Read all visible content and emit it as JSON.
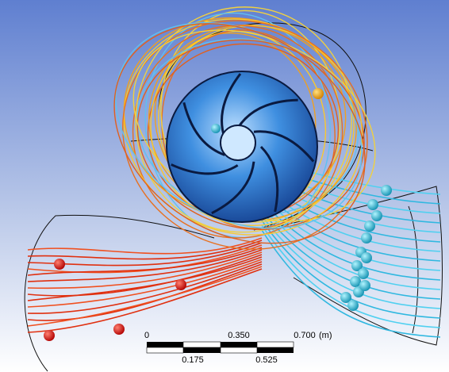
{
  "scale_bar": {
    "top_labels": [
      "0",
      "0.350",
      "0.700"
    ],
    "unit": "(m)",
    "bottom_labels": [
      "0.175",
      "0.525"
    ]
  }
}
